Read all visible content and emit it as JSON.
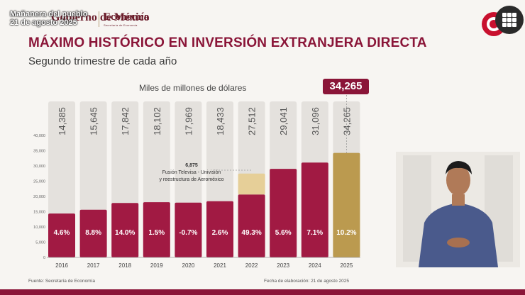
{
  "broadcast": {
    "overlay_line1": "Mañanera del pueblo",
    "overlay_line2": "21 de agosto 2025"
  },
  "header": {
    "gov_logo": "Gobierno de México",
    "ministry": "Economía",
    "ministry_sub": "Secretaría de Economía"
  },
  "slide": {
    "title": "MÁXIMO HISTÓRICO EN INVERSIÓN EXTRANJERA DIRECTA",
    "subtitle": "Segundo trimestre de cada año",
    "unit_label": "Miles de millones de dólares",
    "highlight_value": "34,265",
    "source": "Fuente: Secretaría de Economía",
    "date_note": "Fecha de elaboración: 21 de agosto 2025"
  },
  "colors": {
    "bar": "#a11a43",
    "bar_highlight": "#bb9a4f",
    "extra": "#e6cf98",
    "title": "#8a1538",
    "column_bg": "#e4e1dd"
  },
  "icons": {
    "menu": "grid-menu-icon",
    "brand": "brand-sun-icon"
  },
  "chart_data": {
    "type": "bar",
    "categories": [
      "2016",
      "2017",
      "2018",
      "2019",
      "2020",
      "2021",
      "2022",
      "2023",
      "2024",
      "2025"
    ],
    "values": [
      14385,
      15645,
      17842,
      18102,
      17969,
      18433,
      27512,
      29041,
      31096,
      34265
    ],
    "value_labels": [
      "14,385",
      "15,645",
      "17,842",
      "18,102",
      "17,969",
      "18,433",
      "27,512",
      "29,041",
      "31,096",
      "34,265"
    ],
    "growth_labels": [
      "4.6%",
      "8.8%",
      "14.0%",
      "1.5%",
      "-0.7%",
      "2.6%",
      "49.3%",
      "5.6%",
      "7.1%",
      "10.2%"
    ],
    "stacked_extra": {
      "category": "2022",
      "value": 6875,
      "label": "6,875",
      "annotation": "Fusión Televisa - Univisión y reestructura de Aeroméxico"
    },
    "highlight_category": "2025",
    "yticks": [
      "0",
      "5,000",
      "10,000",
      "15,000",
      "20,000",
      "25,000",
      "30,000",
      "35,000",
      "40,000"
    ],
    "ylim": [
      0,
      40000
    ],
    "grid": false
  }
}
